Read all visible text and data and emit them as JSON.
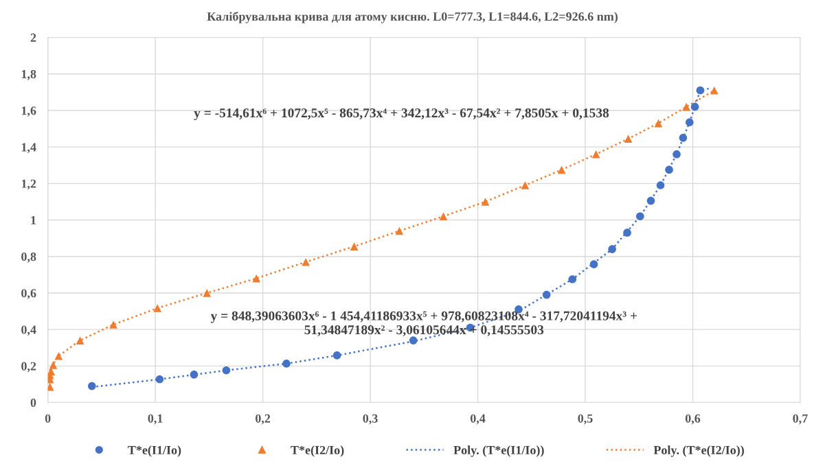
{
  "chart_data": {
    "type": "scatter",
    "title": "Калібрувальна крива для атому кисню. L0=777.3, L1=844.6, L2=926.6 nm)",
    "xlim": [
      0,
      0.7
    ],
    "xticks": [
      0,
      {
        "value": 0.1,
        "label": "0,1"
      },
      {
        "value": 0.2,
        "label": "0,2"
      },
      {
        "value": 0.3,
        "label": "0,3"
      },
      {
        "value": 0.4,
        "label": "0,4"
      },
      {
        "value": 0.5,
        "label": "0,5"
      },
      {
        "value": 0.6,
        "label": "0,6"
      },
      {
        "value": 0.7,
        "label": "0,7"
      }
    ],
    "ylim": [
      0,
      2
    ],
    "yticks": [
      0,
      {
        "value": 0.2,
        "label": "0,2"
      },
      {
        "value": 0.4,
        "label": "0,4"
      },
      {
        "value": 0.6,
        "label": "0,6"
      },
      {
        "value": 0.8,
        "label": "0,8"
      },
      1,
      {
        "value": 1.2,
        "label": "1,2"
      },
      {
        "value": 1.4,
        "label": "1,4"
      },
      {
        "value": 1.6,
        "label": "1,6"
      },
      {
        "value": 1.8,
        "label": "1,8"
      },
      2
    ],
    "grid": true,
    "legend": "bottom",
    "series": [
      {
        "name": "T*e(I1/Io)",
        "marker": "circle",
        "color": "#4472c4",
        "x": [
          0.041,
          0.104,
          0.136,
          0.166,
          0.222,
          0.269,
          0.34,
          0.393,
          0.438,
          0.464,
          0.488,
          0.508,
          0.525,
          0.539,
          0.551,
          0.561,
          0.57,
          0.578,
          0.585,
          0.591,
          0.597,
          0.602,
          0.607
        ],
        "values": [
          0.09,
          0.127,
          0.153,
          0.176,
          0.213,
          0.258,
          0.34,
          0.41,
          0.51,
          0.59,
          0.675,
          0.757,
          0.84,
          0.93,
          1.02,
          1.105,
          1.19,
          1.275,
          1.36,
          1.45,
          1.535,
          1.62,
          1.71
        ]
      },
      {
        "name": "T*e(I2/Io)",
        "marker": "triangle",
        "color": "#ed7d31",
        "x": [
          0.002,
          0.002,
          0.002,
          0.003,
          0.005,
          0.01,
          0.03,
          0.061,
          0.102,
          0.148,
          0.194,
          0.24,
          0.285,
          0.327,
          0.368,
          0.407,
          0.444,
          0.478,
          0.51,
          0.54,
          0.568,
          0.594,
          0.62
        ],
        "values": [
          0.086,
          0.127,
          0.15,
          0.17,
          0.205,
          0.255,
          0.34,
          0.427,
          0.517,
          0.6,
          0.68,
          0.77,
          0.855,
          0.94,
          1.02,
          1.1,
          1.19,
          1.275,
          1.36,
          1.445,
          1.53,
          1.62,
          1.71
        ]
      },
      {
        "name": "Poly. (T*e(I1/Io))",
        "type": "line",
        "line_style": "dotted",
        "color": "#4472c4",
        "x": [
          0.041,
          0.104,
          0.166,
          0.222,
          0.269,
          0.34,
          0.393,
          0.438,
          0.488,
          0.525,
          0.551,
          0.57,
          0.585,
          0.597,
          0.607,
          0.615
        ],
        "values": [
          0.085,
          0.127,
          0.176,
          0.213,
          0.258,
          0.335,
          0.41,
          0.5,
          0.675,
          0.84,
          1.02,
          1.19,
          1.36,
          1.535,
          1.71,
          1.72
        ]
      },
      {
        "name": "Poly. (T*e(I2/Io))",
        "type": "line",
        "line_style": "dotted",
        "color": "#ed7d31",
        "x": [
          0.0,
          0.003,
          0.01,
          0.03,
          0.061,
          0.102,
          0.148,
          0.194,
          0.24,
          0.285,
          0.327,
          0.368,
          0.407,
          0.444,
          0.478,
          0.51,
          0.54,
          0.568,
          0.594,
          0.62
        ],
        "values": [
          0.15,
          0.19,
          0.255,
          0.34,
          0.427,
          0.517,
          0.6,
          0.68,
          0.77,
          0.855,
          0.94,
          1.02,
          1.1,
          1.19,
          1.275,
          1.36,
          1.445,
          1.53,
          1.62,
          1.71
        ]
      }
    ],
    "annotations": [
      "y = -514,61x⁶ + 1072,5x⁵ - 865,73x⁴ + 342,12x³ - 67,54x² + 7,8505x + 0,1538",
      "y = 848,39063603x⁶ - 1 454,41186933x⁵ + 978,60823108x⁴ - 317,72041194x³ +\n51,34847189x² - 3,06105644x + 0,14555503"
    ]
  }
}
